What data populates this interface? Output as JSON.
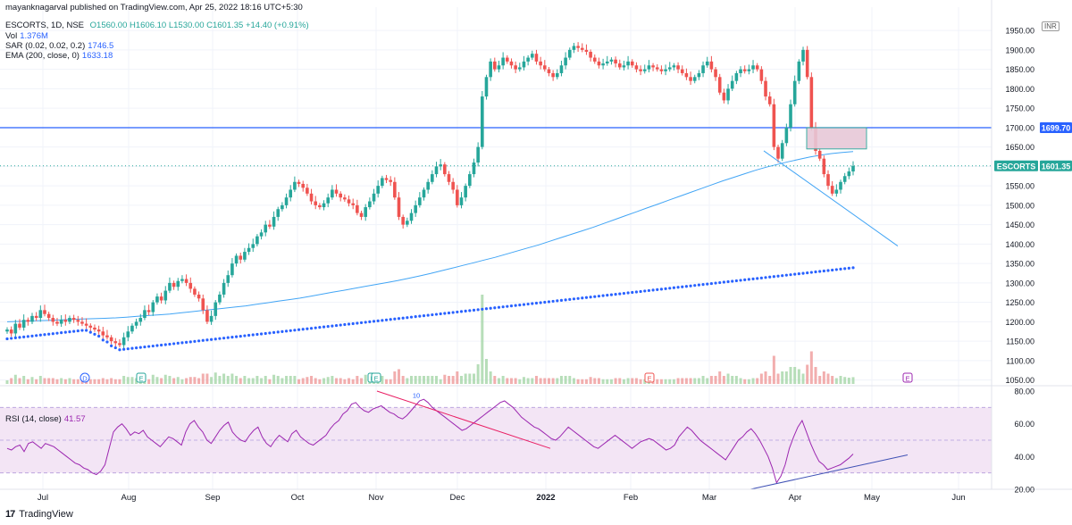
{
  "header": {
    "published": "mayanknagarval published on TradingView.com, Apr 25, 2022 18:16 UTC+5:30",
    "symbol_line": "ESCORTS, 1D, NSE",
    "ohlc": "O1560.00  H1606.10  L1530.00  C1601.35  +14.40 (+0.91%)",
    "vol_label": "Vol",
    "vol_value": "1.376M",
    "sar_label": "SAR (0.02, 0.02, 0.2)",
    "sar_value": "1746.5",
    "ema_label": "EMA (200, close, 0)",
    "ema_value": "1633.18"
  },
  "currency": "INR",
  "rsi_header": {
    "label": "RSI (14, close)",
    "value": "41.57"
  },
  "brand": "TradingView",
  "colors": {
    "up": "#26a69a",
    "down": "#ef5350",
    "sar": "#2962ff",
    "ema": "#42a5f5",
    "hline": "#2962ff",
    "rsi": "#9c27b0",
    "rsi_band": "#f3e5f5",
    "trend_down": "#e91e63"
  },
  "chart_data": {
    "type": "candlestick",
    "price_axis": {
      "ticks": [
        "1950.00",
        "1900.00",
        "1850.00",
        "1800.00",
        "1750.00",
        "1700.00",
        "1650.00",
        "1600.00",
        "1550.00",
        "1500.00",
        "1450.00",
        "1400.00",
        "1350.00",
        "1300.00",
        "1250.00",
        "1200.00",
        "1150.00",
        "1100.00",
        "1050.00"
      ],
      "range": [
        1040,
        2010
      ]
    },
    "time_axis": [
      "Jul",
      "Aug",
      "Sep",
      "Oct",
      "Nov",
      "Dec",
      "2022",
      "Feb",
      "Mar",
      "Apr",
      "May",
      "Jun"
    ],
    "price_labels": [
      {
        "text": "1699.70",
        "value": 1699.7,
        "color": "#2962ff"
      },
      {
        "text": "ESCORTS",
        "value": 1601.35,
        "color": "#26a69a"
      },
      {
        "text": "1601.35",
        "value": 1601.35,
        "color": "#26a69a"
      }
    ],
    "horizontal_line": 1699.7,
    "last_close": 1601.35,
    "events": [
      "D",
      "E",
      "E",
      "E",
      "E",
      "E"
    ],
    "rsi_axis": {
      "ticks": [
        "80.00",
        "60.00",
        "40.00",
        "20.00"
      ],
      "range": [
        20,
        80
      ],
      "bands": [
        30,
        70
      ]
    },
    "rsi_annotation": "10",
    "closes": [
      1180,
      1170,
      1195,
      1185,
      1205,
      1200,
      1215,
      1210,
      1230,
      1220,
      1210,
      1200,
      1195,
      1205,
      1200,
      1210,
      1205,
      1200,
      1195,
      1190,
      1185,
      1180,
      1175,
      1165,
      1160,
      1150,
      1145,
      1140,
      1160,
      1175,
      1190,
      1200,
      1210,
      1230,
      1225,
      1250,
      1265,
      1255,
      1280,
      1300,
      1290,
      1305,
      1310,
      1300,
      1285,
      1270,
      1260,
      1230,
      1200,
      1215,
      1250,
      1270,
      1300,
      1320,
      1350,
      1370,
      1360,
      1380,
      1390,
      1400,
      1420,
      1430,
      1450,
      1445,
      1470,
      1490,
      1500,
      1520,
      1540,
      1560,
      1555,
      1545,
      1530,
      1510,
      1500,
      1495,
      1505,
      1520,
      1540,
      1530,
      1520,
      1515,
      1505,
      1500,
      1480,
      1470,
      1495,
      1510,
      1530,
      1550,
      1570,
      1565,
      1560,
      1520,
      1470,
      1450,
      1460,
      1480,
      1500,
      1520,
      1540,
      1560,
      1580,
      1600,
      1605,
      1580,
      1560,
      1540,
      1500,
      1520,
      1550,
      1580,
      1610,
      1650,
      1780,
      1830,
      1870,
      1850,
      1860,
      1880,
      1870,
      1860,
      1850,
      1855,
      1870,
      1880,
      1890,
      1870,
      1860,
      1850,
      1840,
      1830,
      1840,
      1860,
      1880,
      1900,
      1910,
      1905,
      1900,
      1895,
      1880,
      1870,
      1860,
      1865,
      1870,
      1875,
      1865,
      1855,
      1860,
      1870,
      1860,
      1850,
      1845,
      1850,
      1860,
      1855,
      1850,
      1845,
      1850,
      1855,
      1860,
      1850,
      1840,
      1830,
      1820,
      1830,
      1840,
      1860,
      1870,
      1850,
      1830,
      1790,
      1770,
      1800,
      1820,
      1840,
      1850,
      1845,
      1850,
      1860,
      1850,
      1820,
      1780,
      1760,
      1650,
      1620,
      1660,
      1700,
      1760,
      1820,
      1870,
      1900,
      1830,
      1700,
      1640,
      1620,
      1580,
      1550,
      1530,
      1540,
      1560,
      1575,
      1587,
      1601.35
    ],
    "ema200": [
      1200,
      1201,
      1202,
      1203,
      1204,
      1205,
      1206,
      1207,
      1208,
      1209,
      1210,
      1212,
      1214,
      1216,
      1218,
      1220,
      1223,
      1226,
      1229,
      1232,
      1235,
      1238,
      1241,
      1245,
      1249,
      1253,
      1257,
      1261,
      1266,
      1271,
      1276,
      1281,
      1286,
      1291,
      1296,
      1301,
      1306,
      1312,
      1318,
      1324,
      1331,
      1338,
      1345,
      1352,
      1359,
      1366,
      1374,
      1382,
      1390,
      1398,
      1407,
      1416,
      1425,
      1434,
      1443,
      1453,
      1463,
      1473,
      1483,
      1493,
      1503,
      1513,
      1523,
      1533,
      1543,
      1553,
      1563,
      1572,
      1581,
      1590,
      1598,
      1605,
      1612,
      1618,
      1624,
      1629,
      1633,
      1636,
      1638
    ],
    "rsi": [
      45,
      44,
      46,
      47,
      43,
      48,
      49,
      47,
      45,
      48,
      47,
      46,
      44,
      42,
      40,
      38,
      36,
      35,
      33,
      32,
      30,
      29,
      31,
      35,
      45,
      55,
      58,
      60,
      57,
      53,
      55,
      54,
      56,
      52,
      50,
      48,
      46,
      49,
      52,
      51,
      49,
      47,
      55,
      60,
      62,
      58,
      55,
      50,
      48,
      52,
      56,
      59,
      61,
      55,
      52,
      50,
      49,
      53,
      56,
      58,
      52,
      48,
      46,
      50,
      53,
      51,
      49,
      54,
      56,
      52,
      50,
      48,
      47,
      49,
      51,
      53,
      57,
      60,
      62,
      66,
      68,
      72,
      73,
      70,
      68,
      67,
      69,
      70,
      71,
      69,
      67,
      66,
      64,
      63,
      65,
      68,
      71,
      74,
      75,
      73,
      70,
      68,
      66,
      64,
      62,
      60,
      58,
      56,
      57,
      59,
      61,
      63,
      65,
      67,
      69,
      71,
      73,
      74,
      72,
      70,
      67,
      64,
      62,
      60,
      58,
      57,
      55,
      53,
      51,
      50,
      52,
      55,
      58,
      56,
      54,
      52,
      50,
      48,
      46,
      45,
      47,
      49,
      51,
      53,
      51,
      49,
      47,
      45,
      47,
      49,
      50,
      51,
      50,
      48,
      46,
      44,
      45,
      47,
      52,
      55,
      58,
      56,
      53,
      50,
      48,
      46,
      44,
      42,
      40,
      38,
      42,
      46,
      50,
      52,
      55,
      57,
      54,
      50,
      45,
      40,
      33,
      24,
      28,
      35,
      45,
      52,
      58,
      62,
      55,
      48,
      42,
      37,
      35,
      32,
      33,
      34,
      35,
      37,
      39,
      41.57
    ]
  }
}
